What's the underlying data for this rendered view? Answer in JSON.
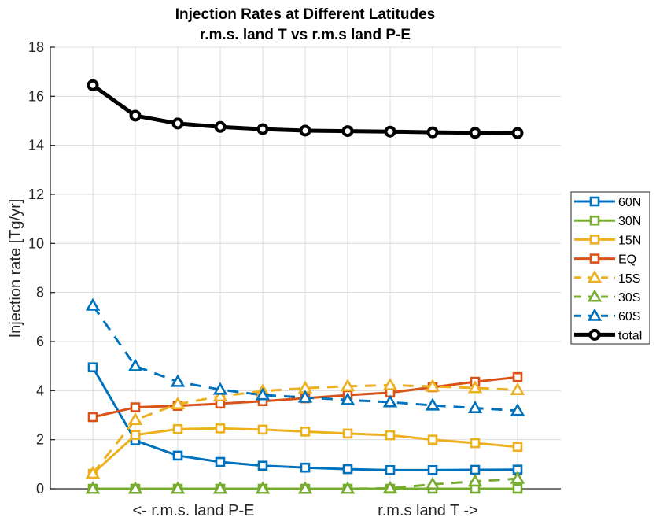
{
  "chart_data": {
    "type": "line",
    "title": "Injection Rates at Different Latitudes",
    "subtitle": "r.m.s. land T vs r.m.s land P-E",
    "xlabel_left": "<- r.m.s. land P-E",
    "xlabel_right": "r.m.s land T ->",
    "ylabel": "Injection rate [Tg/yr]",
    "x": [
      1,
      2,
      3,
      4,
      5,
      6,
      7,
      8,
      9,
      10,
      11
    ],
    "xlim": [
      0,
      12
    ],
    "ylim": [
      0,
      18
    ],
    "yticks": [
      0,
      2,
      4,
      6,
      8,
      10,
      12,
      14,
      16,
      18
    ],
    "ytick_labels": [
      "0",
      "2",
      "4",
      "6",
      "8",
      "10",
      "12",
      "14",
      "16",
      "18"
    ],
    "grid": true,
    "legend_position": "outside-right",
    "series": [
      {
        "name": "60N",
        "color": "#0072BD",
        "marker": "square",
        "dash": "solid",
        "values": [
          4.95,
          1.97,
          1.35,
          1.09,
          0.94,
          0.86,
          0.8,
          0.76,
          0.76,
          0.77,
          0.78
        ]
      },
      {
        "name": "30N",
        "color": "#77AC30",
        "marker": "square",
        "dash": "solid",
        "values": [
          0,
          0,
          0,
          0,
          0,
          0,
          0,
          0,
          0,
          0,
          0
        ]
      },
      {
        "name": "15N",
        "color": "#EDB120",
        "marker": "square",
        "dash": "solid",
        "values": [
          0.61,
          2.19,
          2.43,
          2.46,
          2.41,
          2.33,
          2.25,
          2.18,
          2.0,
          1.86,
          1.71
        ]
      },
      {
        "name": "EQ",
        "color": "#D95319",
        "marker": "square",
        "dash": "solid",
        "values": [
          2.92,
          3.32,
          3.38,
          3.47,
          3.57,
          3.69,
          3.82,
          3.92,
          4.14,
          4.36,
          4.55
        ]
      },
      {
        "name": "15S",
        "color": "#EDB120",
        "marker": "triangle",
        "dash": "dashed",
        "values": [
          0.62,
          2.81,
          3.45,
          3.77,
          3.98,
          4.1,
          4.18,
          4.22,
          4.17,
          4.11,
          4.03
        ]
      },
      {
        "name": "30S",
        "color": "#77AC30",
        "marker": "triangle",
        "dash": "dashed",
        "values": [
          0,
          0,
          0,
          0,
          0,
          0,
          0,
          0.02,
          0.18,
          0.3,
          0.41
        ]
      },
      {
        "name": "60S",
        "color": "#0072BD",
        "marker": "triangle",
        "dash": "dashed",
        "values": [
          7.47,
          5.0,
          4.36,
          4.04,
          3.82,
          3.72,
          3.62,
          3.53,
          3.4,
          3.29,
          3.18
        ]
      },
      {
        "name": "total",
        "color": "#000000",
        "marker": "circle",
        "dash": "solid",
        "bold": true,
        "values": [
          16.45,
          15.21,
          14.89,
          14.75,
          14.66,
          14.6,
          14.58,
          14.56,
          14.53,
          14.51,
          14.5
        ]
      }
    ]
  }
}
